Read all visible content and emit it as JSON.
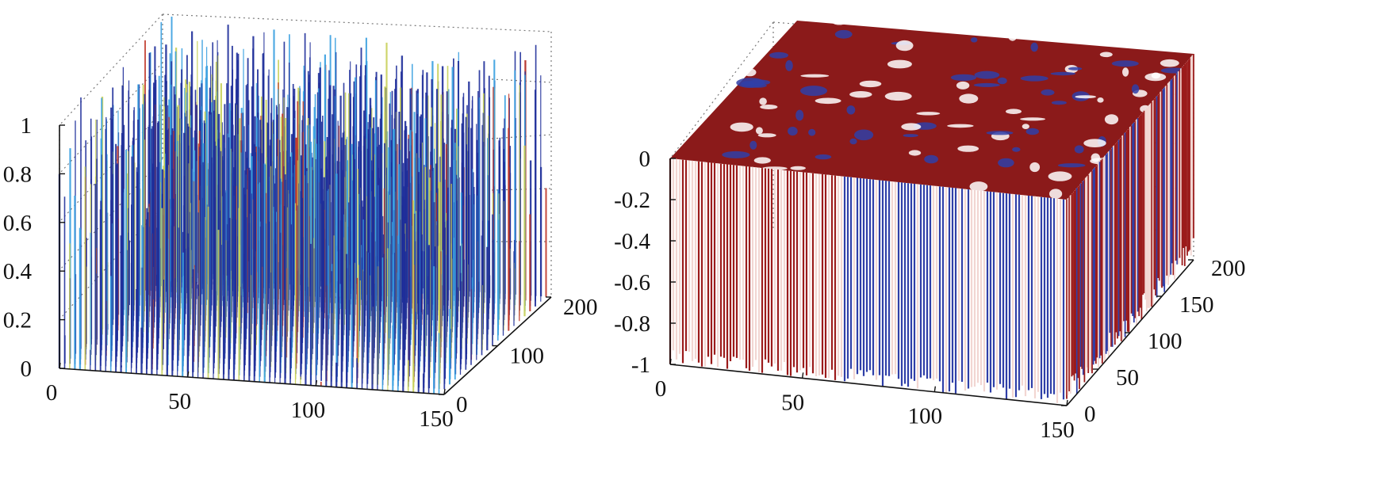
{
  "chart_data": [
    {
      "type": "surface",
      "title": "",
      "zlim": [
        0,
        1
      ],
      "z_ticks": [
        "0",
        "0.2",
        "0.4",
        "0.6",
        "0.8",
        "1"
      ],
      "x_ticks": [
        "0",
        "50",
        "100",
        "150"
      ],
      "y_ticks": [
        "0",
        "100",
        "200"
      ],
      "xlim": [
        0,
        150
      ],
      "ylim": [
        0,
        200
      ],
      "grid": true,
      "colormap": "jet",
      "colors": {
        "low": "#1f2f9a",
        "mid": "#3aa0e0",
        "high": "#c8d05a",
        "peak": "#c0392b"
      }
    },
    {
      "type": "surface",
      "title": "",
      "zlim": [
        -1,
        0
      ],
      "z_ticks": [
        "0",
        "-0.2",
        "-0.4",
        "-0.6",
        "-0.8",
        "-1"
      ],
      "x_ticks": [
        "0",
        "50",
        "100",
        "150"
      ],
      "y_ticks": [
        "0",
        "50",
        "100",
        "150",
        "200"
      ],
      "xlim": [
        0,
        150
      ],
      "ylim": [
        0,
        200
      ],
      "grid": true,
      "colormap": "two-tone",
      "colors": {
        "top": "#8b1a1a",
        "wall_blue": "#2f3fa8",
        "wall_red": "#9b1b1b",
        "wall_light": "#f2d6d2"
      }
    }
  ]
}
